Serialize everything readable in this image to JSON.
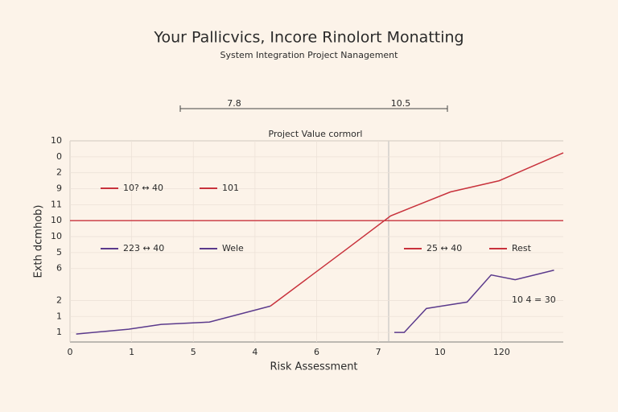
{
  "chart_data": {
    "type": "line",
    "title": "Your Pallicvics, Incore Rinolort Monatting",
    "subtitle": "System Integration Project Nanagement",
    "plot_title": "Project Value cormorl",
    "x_label": "Risk Assessment",
    "y_label": "Exth dcmhob)",
    "range_labels": [
      "7.8",
      "10.5"
    ],
    "xlim": [
      0,
      8
    ],
    "xticks": [
      0,
      1,
      {
        "value": 2,
        "label": "5"
      },
      {
        "value": 3,
        "label": "4"
      },
      {
        "value": 4,
        "label": "6"
      },
      {
        "value": 5,
        "label": "7"
      },
      {
        "value": 6,
        "label": "10"
      },
      {
        "value": 7,
        "label": "120"
      }
    ],
    "ylim": [
      -0.6,
      12
    ],
    "yticks": [
      {
        "value": 0,
        "label": "1"
      },
      1,
      2,
      {
        "value": 4,
        "label": "6"
      },
      {
        "value": 5,
        "label": "5"
      },
      {
        "value": 6,
        "label": "10"
      },
      {
        "value": 7,
        "label": "10"
      },
      {
        "value": 8,
        "label": "11"
      },
      9,
      {
        "value": 10,
        "label": "2"
      },
      {
        "value": 11,
        "label": "0"
      },
      {
        "value": 12,
        "label": "10"
      }
    ],
    "grid": true,
    "reference_line": {
      "value": 7,
      "color": "#c8323c"
    },
    "series": [
      {
        "color": "#5b3a8c",
        "x": [
          0.1,
          0.95,
          1.48,
          2.26,
          3.25
        ],
        "values": [
          -0.1,
          0.2,
          0.5,
          0.65,
          1.65
        ]
      },
      {
        "color": "#c8323c",
        "x": [
          3.25,
          4.48,
          5.2,
          6.17,
          6.96,
          8.0
        ],
        "values": [
          1.65,
          5.2,
          7.3,
          8.8,
          9.5,
          11.25
        ]
      },
      {
        "color": "#5b3a8c",
        "x": [
          5.26,
          5.42,
          5.78,
          6.44,
          6.83,
          7.22,
          7.85
        ],
        "values": [
          0,
          0,
          1.5,
          1.9,
          3.6,
          3.3,
          3.9
        ]
      }
    ],
    "annotations": [
      {
        "text": "10? ↔ 40",
        "color": "#c8323c"
      },
      {
        "text": "101",
        "color": "#c8323c"
      },
      {
        "text": "223 ↔ 40",
        "color": "#5b3a8c"
      },
      {
        "text": "Wele",
        "color": "#5b3a8c"
      },
      {
        "text": "25 ↔ 40",
        "color": "#c8323c"
      },
      {
        "text": "Rest",
        "color": "#c8323c"
      },
      {
        "text": "10 4 = 30"
      }
    ]
  }
}
